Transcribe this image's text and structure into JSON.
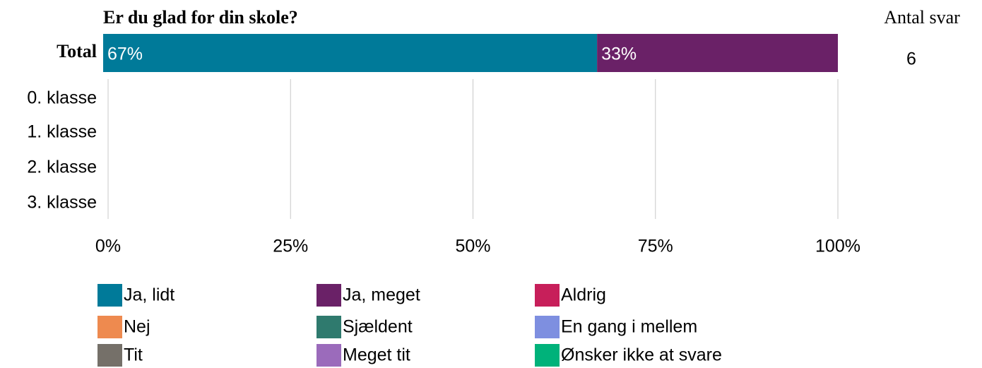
{
  "chart_data": {
    "type": "stacked-bar-horizontal",
    "title": "Er du glad for din skole?",
    "count_header": "Antal svar",
    "categories": [
      "Total",
      "0. klasse",
      "1. klasse",
      "2. klasse",
      "3. klasse"
    ],
    "counts": [
      6,
      null,
      null,
      null,
      null
    ],
    "series": [
      {
        "name": "Ja, lidt",
        "color": "#007a99",
        "values": [
          67,
          null,
          null,
          null,
          null
        ],
        "value_labels": [
          "67%",
          null,
          null,
          null,
          null
        ]
      },
      {
        "name": "Ja, meget",
        "color": "#6a2167",
        "values": [
          33,
          null,
          null,
          null,
          null
        ],
        "value_labels": [
          "33%",
          null,
          null,
          null,
          null
        ]
      },
      {
        "name": "Aldrig",
        "color": "#c71f5a",
        "values": [
          null,
          null,
          null,
          null,
          null
        ]
      },
      {
        "name": "Nej",
        "color": "#ee8a4f",
        "values": [
          null,
          null,
          null,
          null,
          null
        ]
      },
      {
        "name": "Sjældent",
        "color": "#2f7a6e",
        "values": [
          null,
          null,
          null,
          null,
          null
        ]
      },
      {
        "name": "En gang i mellem",
        "color": "#7e8fe0",
        "values": [
          null,
          null,
          null,
          null,
          null
        ]
      },
      {
        "name": "Tit",
        "color": "#757069",
        "values": [
          null,
          null,
          null,
          null,
          null
        ]
      },
      {
        "name": "Meget tit",
        "color": "#9b6bbb",
        "values": [
          null,
          null,
          null,
          null,
          null
        ]
      },
      {
        "name": "Ønsker ikke at svare",
        "color": "#00b27a",
        "values": [
          null,
          null,
          null,
          null,
          null
        ]
      }
    ],
    "xlim": [
      0,
      100
    ],
    "xticks": [
      {
        "value": 0,
        "label": "0%"
      },
      {
        "value": 25,
        "label": "25%"
      },
      {
        "value": 50,
        "label": "50%"
      },
      {
        "value": 75,
        "label": "75%"
      },
      {
        "value": 100,
        "label": "100%"
      }
    ],
    "grid": true
  }
}
